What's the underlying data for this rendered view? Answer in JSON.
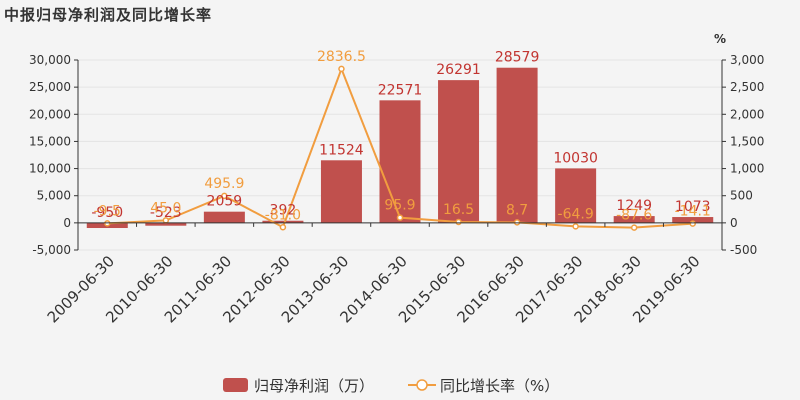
{
  "chart_data": {
    "type": "bar",
    "title": "中报归母净利润及同比增长率",
    "categories": [
      "2009-06-30",
      "2010-06-30",
      "2011-06-30",
      "2012-06-30",
      "2013-06-30",
      "2014-06-30",
      "2015-06-30",
      "2016-06-30",
      "2017-06-30",
      "2018-06-30",
      "2019-06-30"
    ],
    "series": [
      {
        "name": "归母净利润（万）",
        "type": "bar",
        "axis": "left",
        "color": "#c0504d",
        "values": [
          -950,
          -523,
          2059,
          392,
          11524,
          22571,
          26291,
          28579,
          10030,
          1249,
          1073
        ],
        "labels": [
          "-950",
          "-523",
          "2059",
          "392",
          "11524",
          "22571",
          "26291",
          "28579",
          "10030",
          "1249",
          "1073"
        ]
      },
      {
        "name": "同比增长率（%）",
        "type": "line",
        "axis": "right",
        "color": "#f19d3f",
        "values": [
          -9.5,
          45.0,
          495.9,
          -81.0,
          2836.5,
          95.9,
          16.5,
          8.7,
          -64.9,
          -87.6,
          -14.1
        ],
        "labels": [
          "-9.5",
          "45.0",
          "495.9",
          "-81.0",
          "2836.5",
          "95.9",
          "16.5",
          "8.7",
          "-64.9",
          "-87.6",
          "-14.1"
        ]
      }
    ],
    "y_left": {
      "ylim": [
        -5000,
        30000
      ],
      "ticks": [
        "30,000",
        "25,000",
        "20,000",
        "15,000",
        "10,000",
        "5,000",
        "0",
        "-5,000"
      ]
    },
    "y_right": {
      "ylim": [
        -500,
        3000
      ],
      "unit": "%",
      "ticks": [
        "3,000",
        "2,500",
        "2,000",
        "1,500",
        "1,000",
        "500",
        "0",
        "-500"
      ]
    },
    "legend_position": "bottom"
  }
}
